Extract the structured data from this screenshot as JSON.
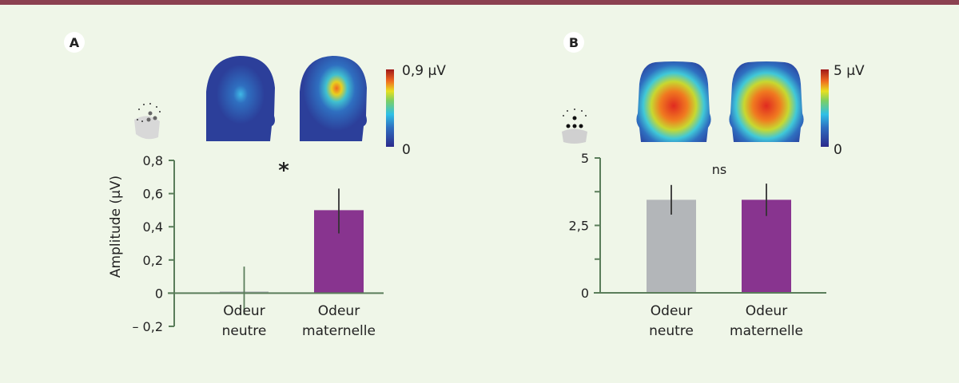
{
  "panels": [
    {
      "letter": "A",
      "colorbar_max_label": "0,9 µV",
      "colorbar_min_label": "0",
      "significance": "*"
    },
    {
      "letter": "B",
      "colorbar_max_label": "5 µV",
      "colorbar_min_label": "0",
      "significance": "ns"
    }
  ],
  "colors": {
    "neutral": "#b3b6b9",
    "maternal": "#88348f",
    "axis": "#5a7d5a",
    "frame": "#8b4150"
  },
  "chart_data": [
    {
      "type": "bar",
      "title": "A",
      "ylabel": "Amplitude (µV)",
      "xlabel": "",
      "categories": [
        "Odeur neutre",
        "Odeur maternelle"
      ],
      "category_lines": [
        [
          "Odeur",
          "neutre"
        ],
        [
          "Odeur",
          "maternelle"
        ]
      ],
      "values": [
        0.01,
        0.5
      ],
      "error_low": [
        -0.13,
        0.36
      ],
      "error_high": [
        0.16,
        0.63
      ],
      "ylim": [
        -0.2,
        0.8
      ],
      "yticks": [
        -0.2,
        0,
        0.2,
        0.4,
        0.6,
        0.8
      ],
      "ytick_labels": [
        "– 0,2",
        "0",
        "0,2",
        "0,4",
        "0,6",
        "0,8"
      ],
      "annotation": "*"
    },
    {
      "type": "bar",
      "title": "B",
      "ylabel": "",
      "xlabel": "",
      "categories": [
        "Odeur neutre",
        "Odeur maternelle"
      ],
      "category_lines": [
        [
          "Odeur",
          "neutre"
        ],
        [
          "Odeur",
          "maternelle"
        ]
      ],
      "values": [
        3.45,
        3.45
      ],
      "error_low": [
        2.9,
        2.85
      ],
      "error_high": [
        4.0,
        4.05
      ],
      "ylim": [
        0,
        5
      ],
      "yticks": [
        0,
        1.25,
        2.5,
        3.75,
        5
      ],
      "ytick_labels": [
        "0",
        "",
        "2,5",
        "",
        "5"
      ],
      "annotation": "ns"
    }
  ]
}
